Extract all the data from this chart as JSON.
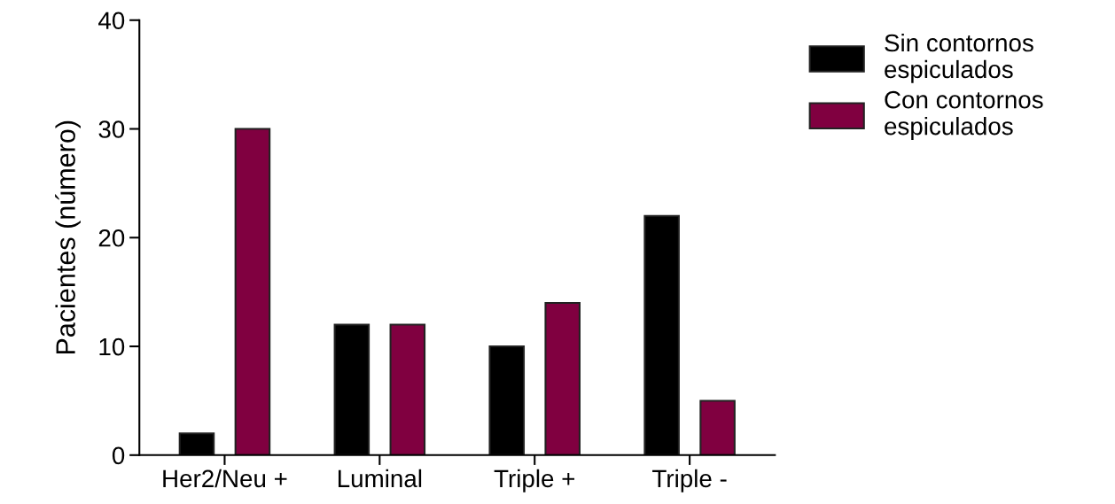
{
  "chart_data": {
    "type": "bar",
    "ylabel": "Pacientes (número)",
    "categories": [
      "Her2/Neu +",
      "Luminal",
      "Triple +",
      "Triple -"
    ],
    "series": [
      {
        "name": "Sin contornos\nespiculados",
        "color": "#000000",
        "values": [
          2,
          12,
          10,
          22
        ]
      },
      {
        "name": "Con contornos\nespiculados",
        "color": "#800040",
        "values": [
          30,
          12,
          14,
          5
        ]
      }
    ],
    "ylim": [
      0,
      40
    ],
    "yticks": [
      0,
      10,
      20,
      30,
      40
    ],
    "grid": false,
    "legend": "top right"
  }
}
